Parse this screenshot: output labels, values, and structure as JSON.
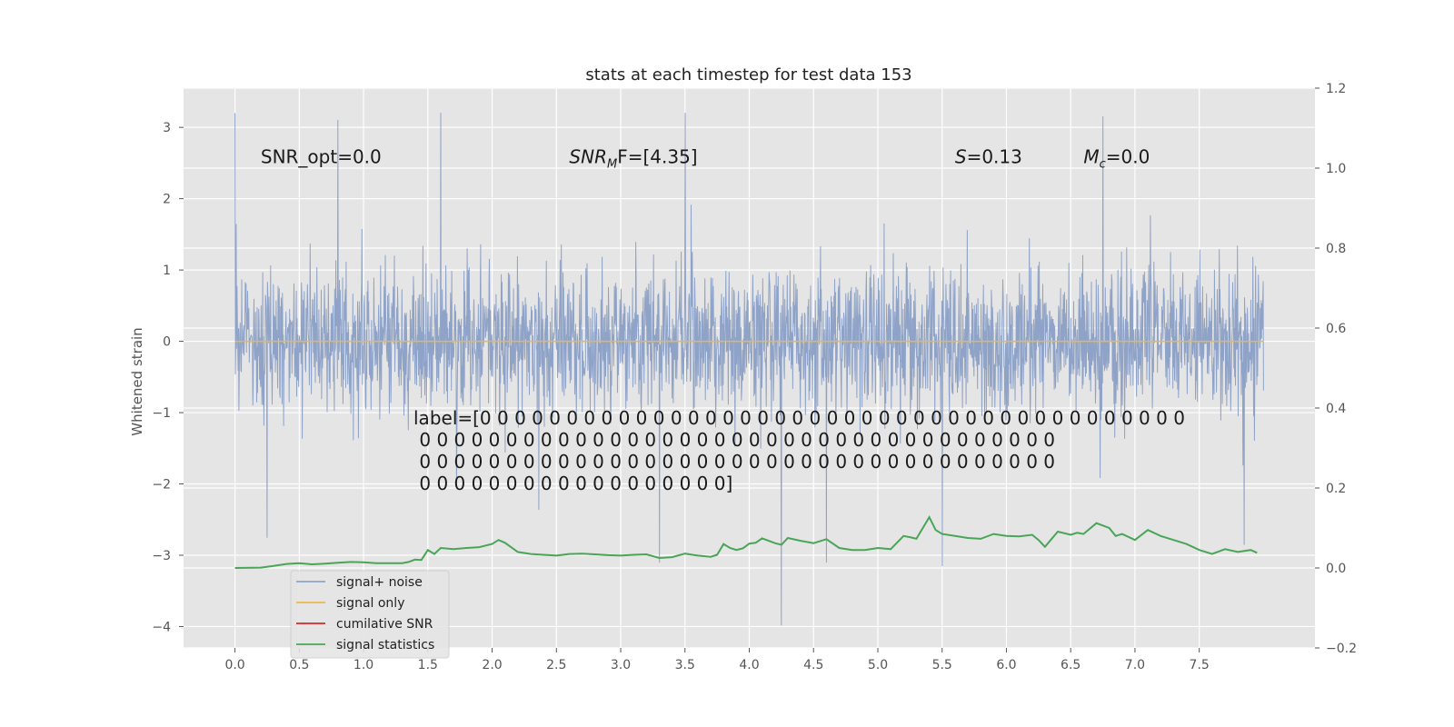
{
  "chart_data": {
    "type": "line",
    "title": "stats at each timestep for test data 153",
    "xlabel": "",
    "ylabel": "Whitened strain",
    "xlim": [
      -0.4,
      8.4
    ],
    "ylim": [
      -4.3,
      3.55
    ],
    "y2lim": [
      -0.2,
      1.2
    ],
    "x_ticks": [
      "0.0",
      "0.5",
      "1.0",
      "1.5",
      "2.0",
      "2.5",
      "3.0",
      "3.5",
      "4.0",
      "4.5",
      "5.0",
      "5.5",
      "6.0",
      "6.5",
      "7.0",
      "7.5"
    ],
    "x_tick_values": [
      0,
      0.5,
      1,
      1.5,
      2,
      2.5,
      3,
      3.5,
      4,
      4.5,
      5,
      5.5,
      6,
      6.5,
      7,
      7.5
    ],
    "y_ticks": [
      "−4",
      "−3",
      "−2",
      "−1",
      "0",
      "1",
      "2",
      "3"
    ],
    "y_tick_values": [
      -4,
      -3,
      -2,
      -1,
      0,
      1,
      2,
      3
    ],
    "y2_ticks": [
      "−0.2",
      "0.0",
      "0.2",
      "0.4",
      "0.6",
      "0.8",
      "1.0",
      "1.2"
    ],
    "y2_tick_values": [
      -0.2,
      0,
      0.2,
      0.4,
      0.6,
      0.8,
      1.0,
      1.2
    ],
    "series": [
      {
        "name": "signal+ noise",
        "color": "#8fa3c8",
        "axis": "left",
        "x_range": [
          0.0,
          8.0
        ],
        "envelope_typical": [
          -1.4,
          1.6
        ],
        "peaks": [
          [
            0.0,
            3.2
          ],
          [
            0.8,
            3.1
          ],
          [
            1.6,
            3.2
          ],
          [
            3.5,
            3.2
          ],
          [
            6.75,
            3.15
          ],
          [
            4.25,
            -3.98
          ],
          [
            5.5,
            -3.15
          ],
          [
            4.6,
            -3.1
          ],
          [
            3.3,
            -3.1
          ],
          [
            0.25,
            -2.75
          ],
          [
            7.85,
            -2.85
          ]
        ]
      },
      {
        "name": "signal only",
        "color": "#e8b84c",
        "axis": "left",
        "x": [
          0.0,
          8.0
        ],
        "y": [
          0.0,
          0.0
        ]
      },
      {
        "name": "cumilative SNR",
        "color": "#d62728",
        "axis": "right",
        "x": [],
        "y": []
      },
      {
        "name": "signal statistics",
        "color": "#4aa558",
        "axis": "right",
        "x": [
          0.0,
          0.2,
          0.3,
          0.4,
          0.5,
          0.6,
          0.7,
          0.8,
          0.9,
          1.0,
          1.1,
          1.2,
          1.3,
          1.35,
          1.4,
          1.45,
          1.5,
          1.55,
          1.6,
          1.7,
          1.8,
          1.9,
          2.0,
          2.05,
          2.1,
          2.2,
          2.3,
          2.4,
          2.5,
          2.6,
          2.7,
          2.8,
          2.9,
          3.0,
          3.1,
          3.2,
          3.3,
          3.4,
          3.5,
          3.6,
          3.7,
          3.75,
          3.8,
          3.85,
          3.9,
          3.95,
          4.0,
          4.05,
          4.1,
          4.2,
          4.25,
          4.3,
          4.4,
          4.5,
          4.6,
          4.7,
          4.8,
          4.9,
          5.0,
          5.1,
          5.2,
          5.25,
          5.3,
          5.4,
          5.45,
          5.5,
          5.6,
          5.7,
          5.8,
          5.9,
          6.0,
          6.1,
          6.2,
          6.25,
          6.3,
          6.4,
          6.5,
          6.55,
          6.6,
          6.7,
          6.8,
          6.85,
          6.9,
          7.0,
          7.1,
          7.2,
          7.3,
          7.4,
          7.5,
          7.6,
          7.7,
          7.8,
          7.9,
          7.95
        ],
        "y": [
          0.0,
          0.001,
          0.005,
          0.01,
          0.012,
          0.009,
          0.011,
          0.013,
          0.015,
          0.014,
          0.012,
          0.012,
          0.012,
          0.015,
          0.021,
          0.02,
          0.045,
          0.035,
          0.05,
          0.047,
          0.05,
          0.052,
          0.06,
          0.07,
          0.063,
          0.04,
          0.035,
          0.033,
          0.031,
          0.035,
          0.036,
          0.034,
          0.032,
          0.031,
          0.033,
          0.034,
          0.025,
          0.027,
          0.036,
          0.031,
          0.028,
          0.033,
          0.06,
          0.05,
          0.045,
          0.049,
          0.061,
          0.063,
          0.074,
          0.062,
          0.058,
          0.075,
          0.068,
          0.062,
          0.072,
          0.05,
          0.045,
          0.045,
          0.05,
          0.047,
          0.08,
          0.077,
          0.073,
          0.127,
          0.095,
          0.085,
          0.08,
          0.075,
          0.073,
          0.085,
          0.08,
          0.079,
          0.083,
          0.07,
          0.053,
          0.091,
          0.083,
          0.088,
          0.085,
          0.112,
          0.1,
          0.08,
          0.085,
          0.07,
          0.095,
          0.08,
          0.07,
          0.06,
          0.045,
          0.035,
          0.047,
          0.04,
          0.045,
          0.038
        ]
      }
    ],
    "annotations": [
      {
        "id": "snr-opt",
        "text": "SNR_opt=0.0",
        "x": 0.2,
        "y": 2.5
      },
      {
        "id": "snr-mf",
        "base": "SNR",
        "sub": "M",
        "rest": "F=[4.35]",
        "x": 2.6,
        "y": 2.5
      },
      {
        "id": "s-stat",
        "base": "S",
        "rest": "=0.13",
        "x": 5.6,
        "y": 2.5
      },
      {
        "id": "mc",
        "base": "M",
        "sub": "c",
        "rest": "=0.0",
        "x": 6.6,
        "y": 2.5
      }
    ],
    "label_lines": [
      "label=[0 0 0 0 0 0 0 0 0 0 0 0 0 0 0 0 0 0 0 0 0 0 0 0 0 0 0 0 0 0 0 0 0 0 0 0 0 0 0 0 0",
      " 0 0 0 0 0 0 0 0 0 0 0 0 0 0 0 0 0 0 0 0 0 0 0 0 0 0 0 0 0 0 0 0 0 0 0 0 0",
      " 0 0 0 0 0 0 0 0 0 0 0 0 0 0 0 0 0 0 0 0 0 0 0 0 0 0 0 0 0 0 0 0 0 0 0 0 0",
      " 0 0 0 0 0 0 0 0 0 0 0 0 0 0 0 0 0 0]"
    ],
    "label_anchor": {
      "x": 1.4,
      "y": -1.1
    },
    "legend": {
      "position": "lower-left",
      "entries": [
        "signal+ noise",
        "signal only",
        "cumilative SNR",
        "signal statistics"
      ]
    },
    "grid": true
  },
  "colors": {
    "plot_bg": "#e5e5e5",
    "grid": "#ffffff",
    "noise": "#8fa3c8",
    "signal": "#e8b84c",
    "snr": "#d62728",
    "stats": "#4aa558"
  }
}
